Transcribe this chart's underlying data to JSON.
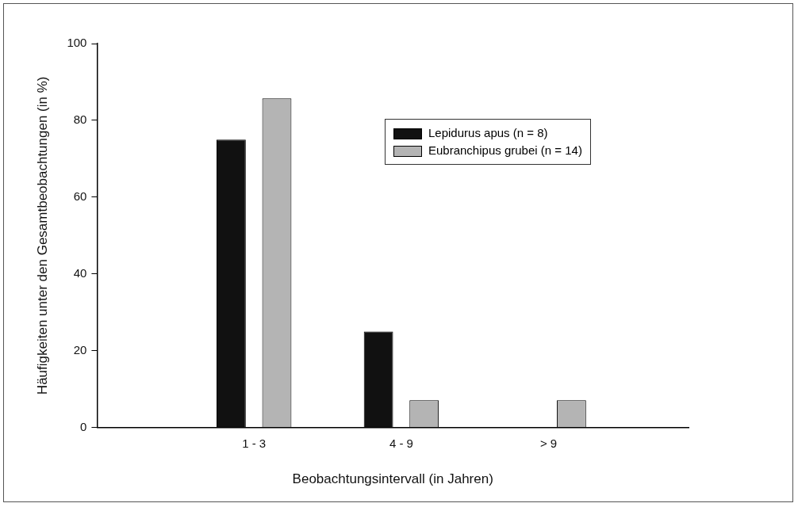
{
  "chart_data": {
    "type": "bar",
    "xlabel": "Beobachtungsintervall (in Jahren)",
    "ylabel": "Häufigkeiten unter den Gesamtbeobachtungen (in %)",
    "categories": [
      "1 - 3",
      "4 - 9",
      "> 9"
    ],
    "series": [
      {
        "name": "Lepidurus apus (n = 8)",
        "color": "#111111",
        "values": [
          75,
          25,
          0
        ]
      },
      {
        "name": "Eubranchipus grubei (n = 14)",
        "color": "#b4b4b4",
        "values": [
          85.7,
          7.1,
          7.1
        ]
      }
    ],
    "ylim": [
      0,
      100
    ],
    "yticks": [
      0,
      20,
      40,
      60,
      80,
      100
    ],
    "grid": false,
    "legend": "top right"
  }
}
